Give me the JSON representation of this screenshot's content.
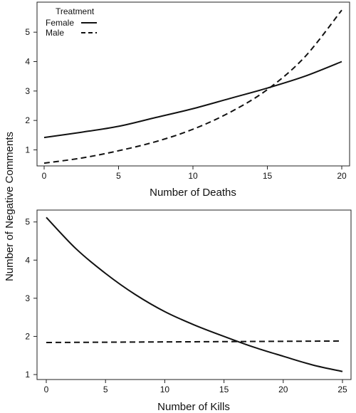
{
  "chart_data": [
    {
      "type": "line",
      "xlabel": "Number of Deaths",
      "ylabel": "Number of Negative Comments",
      "xlim": [
        0,
        20
      ],
      "ylim": [
        0.6,
        5.9
      ],
      "xticks": [
        0,
        5,
        10,
        15,
        20
      ],
      "yticks": [
        1,
        2,
        3,
        4,
        5
      ],
      "grid": false,
      "legend": {
        "title": "Treatment",
        "placement": "top-left"
      },
      "series": [
        {
          "name": "Female",
          "style": "solid",
          "x": [
            0,
            2.5,
            5,
            7.5,
            10,
            12.5,
            15,
            17.5,
            20
          ],
          "y": [
            1.42,
            1.6,
            1.8,
            2.1,
            2.4,
            2.75,
            3.1,
            3.5,
            4.0
          ]
        },
        {
          "name": "Male",
          "style": "dashed",
          "x": [
            0,
            2.5,
            5,
            7.5,
            10,
            12.5,
            15,
            17.5,
            20
          ],
          "y": [
            0.55,
            0.72,
            0.97,
            1.28,
            1.7,
            2.28,
            3.05,
            4.15,
            5.75
          ]
        }
      ]
    },
    {
      "type": "line",
      "xlabel": "Number of Kills",
      "ylabel": "",
      "xlim": [
        0,
        25
      ],
      "ylim": [
        1,
        5.2
      ],
      "xticks": [
        0,
        5,
        10,
        15,
        20,
        25
      ],
      "yticks": [
        1,
        2,
        3,
        4,
        5
      ],
      "grid": false,
      "series": [
        {
          "name": "Female",
          "style": "solid",
          "x": [
            0,
            2.5,
            5,
            7.5,
            10,
            12.5,
            15,
            17.5,
            20,
            22.5,
            25
          ],
          "y": [
            5.12,
            4.3,
            3.65,
            3.1,
            2.65,
            2.3,
            2.0,
            1.72,
            1.48,
            1.25,
            1.08
          ]
        },
        {
          "name": "Male",
          "style": "dashed",
          "x": [
            0,
            25
          ],
          "y": [
            1.84,
            1.88
          ]
        }
      ]
    }
  ]
}
